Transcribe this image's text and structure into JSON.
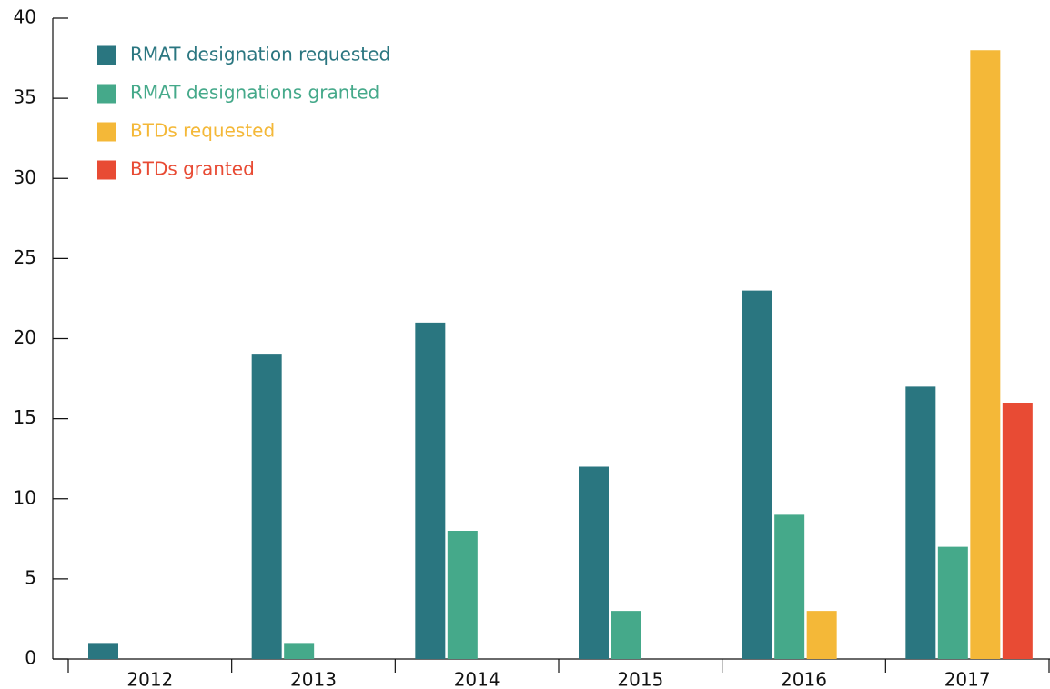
{
  "chart_data": {
    "type": "bar",
    "categories": [
      "2012",
      "2013",
      "2014",
      "2015",
      "2016",
      "2017"
    ],
    "series": [
      {
        "name": "RMAT designation requested",
        "color": "#2a7680",
        "values": [
          1,
          19,
          21,
          12,
          23,
          17
        ]
      },
      {
        "name": "RMAT designations granted",
        "color": "#45a98a",
        "values": [
          null,
          1,
          8,
          3,
          9,
          7
        ]
      },
      {
        "name": "BTDs requested",
        "color": "#f4b838",
        "values": [
          null,
          null,
          null,
          null,
          3,
          38
        ]
      },
      {
        "name": "BTDs granted",
        "color": "#e84b34",
        "values": [
          null,
          null,
          null,
          null,
          null,
          16
        ]
      }
    ],
    "ylim": [
      0,
      40
    ],
    "yticks": [
      0,
      5,
      10,
      15,
      20,
      25,
      30,
      35,
      40
    ],
    "legend": "upper left",
    "grid": false
  }
}
